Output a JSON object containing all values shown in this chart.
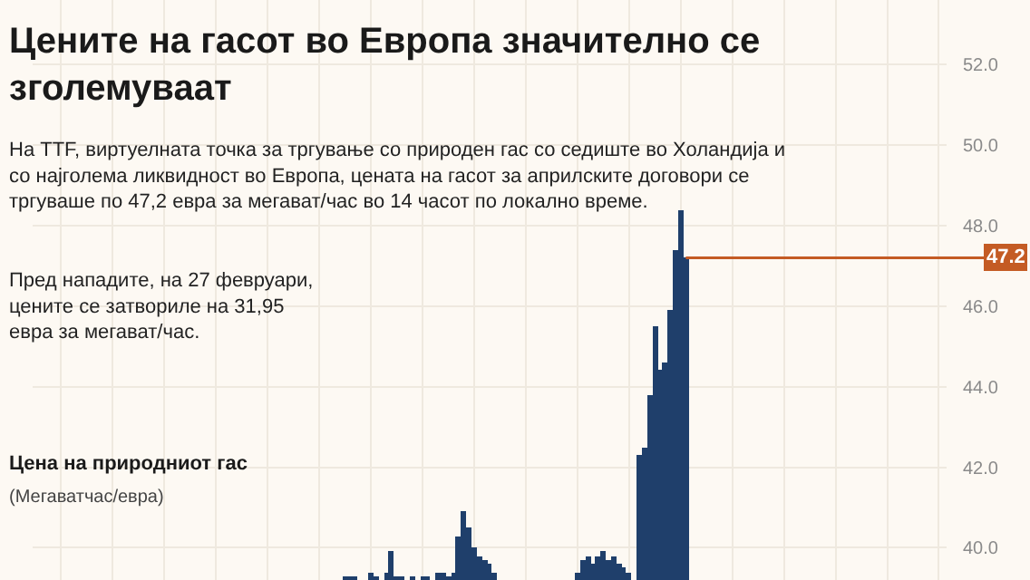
{
  "chart_data": {
    "type": "bar",
    "title": "Цените на гасот во Европа значително се зголемуваат",
    "subtitle": "На TTF, виртуелната точка за тргување со природен гас со седиште во Холандија и со најголема ликвидност во Европа, цената на гасот за априлските договори се тргуваше по 47,2 евра за мегават/час во 14 часот по локално време.",
    "ylabel": "Цена на природниот гас",
    "annotations": [
      "Пред нападите, на 27 февруари, цените се затвориле на 31,95 евра за мегават/час.",
      "(Мегаватчас/евра)"
    ],
    "categories": [
      null,
      null,
      null,
      null,
      null,
      null,
      null,
      null,
      null,
      null,
      null,
      null,
      null,
      null,
      null,
      null,
      null,
      null,
      null,
      null,
      null,
      null,
      null,
      null,
      null,
      null,
      null,
      null,
      null,
      null,
      null,
      null,
      null,
      null,
      null,
      null,
      null,
      null,
      null,
      null,
      null,
      null,
      null,
      null,
      null,
      null,
      null,
      null,
      null,
      null,
      null,
      null,
      null,
      null,
      null,
      null,
      null,
      null,
      null,
      null,
      null,
      null,
      null,
      null,
      null,
      null,
      null,
      null,
      null,
      null,
      null,
      null,
      null,
      null,
      null,
      null,
      null,
      null,
      null,
      null,
      null,
      null,
      null,
      null,
      null,
      null,
      null,
      null,
      null,
      null,
      null,
      null,
      null,
      null,
      null,
      null,
      null,
      null,
      null,
      null,
      null,
      null,
      null,
      null,
      null,
      null,
      null,
      null,
      null,
      null,
      null,
      null,
      null,
      null,
      null,
      null,
      null,
      null,
      null,
      null,
      null,
      null,
      null,
      null,
      null,
      null,
      null,
      null,
      null,
      null,
      null,
      null,
      null,
      null,
      null,
      null,
      null,
      null,
      null,
      null,
      null,
      null,
      null,
      null,
      null,
      null,
      null,
      null,
      null,
      null,
      null,
      null,
      null,
      null,
      null,
      null,
      null,
      null,
      null,
      null,
      null,
      null,
      null,
      null,
      null,
      null,
      null,
      null,
      null,
      null,
      null,
      null,
      null,
      null,
      null,
      null,
      null
    ],
    "values": [
      null,
      null,
      null,
      null,
      null,
      null,
      null,
      null,
      null,
      null,
      null,
      null,
      null,
      null,
      null,
      null,
      null,
      null,
      null,
      null,
      null,
      null,
      null,
      null,
      null,
      null,
      null,
      null,
      null,
      null,
      null,
      null,
      null,
      null,
      null,
      null,
      null,
      null,
      null,
      null,
      null,
      null,
      null,
      null,
      null,
      null,
      null,
      null,
      null,
      null,
      null,
      null,
      null,
      null,
      null,
      null,
      null,
      null,
      null,
      null,
      39.3,
      39.3,
      39.3,
      null,
      null,
      39.4,
      39.3,
      null,
      39.4,
      39.9,
      39.3,
      39.3,
      null,
      39.3,
      null,
      39.3,
      39.3,
      null,
      39.4,
      39.4,
      39.3,
      39.4,
      40.3,
      40.9,
      40.5,
      40.0,
      39.8,
      39.7,
      39.6,
      39.4,
      null,
      null,
      null,
      null,
      null,
      null,
      null,
      null,
      null,
      null,
      null,
      null,
      null,
      null,
      null,
      39.4,
      39.7,
      39.8,
      39.6,
      39.8,
      39.9,
      39.7,
      39.8,
      39.6,
      39.5,
      39.4,
      null,
      42.3,
      42.5,
      43.8,
      45.5,
      44.4,
      44.6,
      45.9,
      47.4,
      48.4,
      47.2,
      null,
      null,
      null,
      null,
      null,
      null,
      null,
      null,
      null,
      null,
      null,
      null,
      null,
      null,
      null,
      null,
      null,
      null,
      null,
      null,
      null,
      null,
      null,
      null,
      null,
      null,
      null,
      null,
      null,
      null,
      null,
      null,
      null,
      null,
      null,
      null,
      null,
      null,
      null,
      null,
      null,
      null,
      null,
      null,
      null,
      null,
      null,
      null,
      null,
      null
    ],
    "color": "#1f3f6b",
    "ylim": [
      39.2,
      53.6
    ],
    "yticks": [
      {
        "value": 40,
        "label": "40.0"
      },
      {
        "value": 42,
        "label": "42.0"
      },
      {
        "value": 44,
        "label": "44.0"
      },
      {
        "value": 46,
        "label": "46.0"
      },
      {
        "value": 48,
        "label": "48.0"
      },
      {
        "value": 50,
        "label": "50.0"
      },
      {
        "value": 52,
        "label": "52.0"
      }
    ],
    "ref_lines": [
      {
        "axis": "y",
        "value": 47.2,
        "label": "47.2",
        "color": "#c45b24"
      }
    ],
    "tick_labels": "y",
    "grid": true,
    "legend": false
  }
}
